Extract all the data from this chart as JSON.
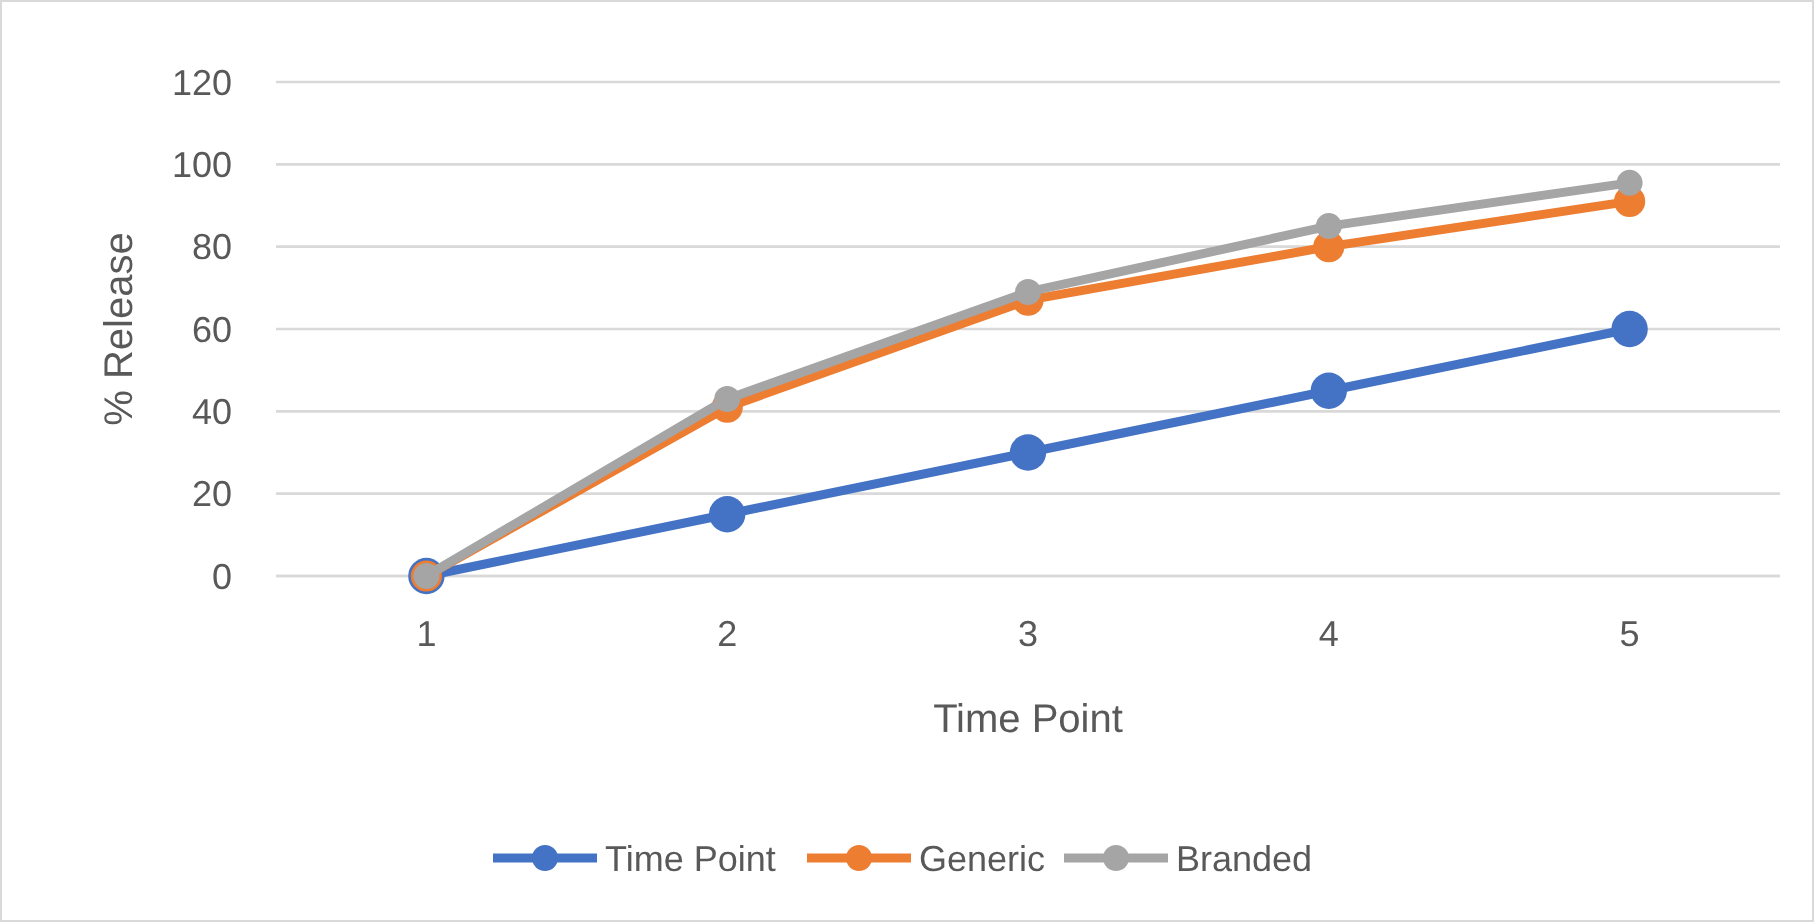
{
  "chart_data": {
    "type": "line",
    "xlabel": "Time Point",
    "ylabel": "% Release",
    "categories": [
      "1",
      "2",
      "3",
      "4",
      "5"
    ],
    "series": [
      {
        "name": "Time Point",
        "color": "#4472c4",
        "values": [
          0,
          15,
          30,
          45,
          60
        ]
      },
      {
        "name": "Generic",
        "color": "#ed7d31",
        "values": [
          0,
          41,
          67,
          80,
          91
        ]
      },
      {
        "name": "Branded",
        "color": "#a5a5a5",
        "values": [
          0,
          43,
          69,
          85,
          95.5
        ]
      }
    ],
    "ylim": [
      0,
      120
    ],
    "yticks": [
      0,
      20,
      40,
      60,
      80,
      100,
      120
    ],
    "grid": "y",
    "legend": "bottom",
    "marker": "circle",
    "line_style": "solid"
  }
}
